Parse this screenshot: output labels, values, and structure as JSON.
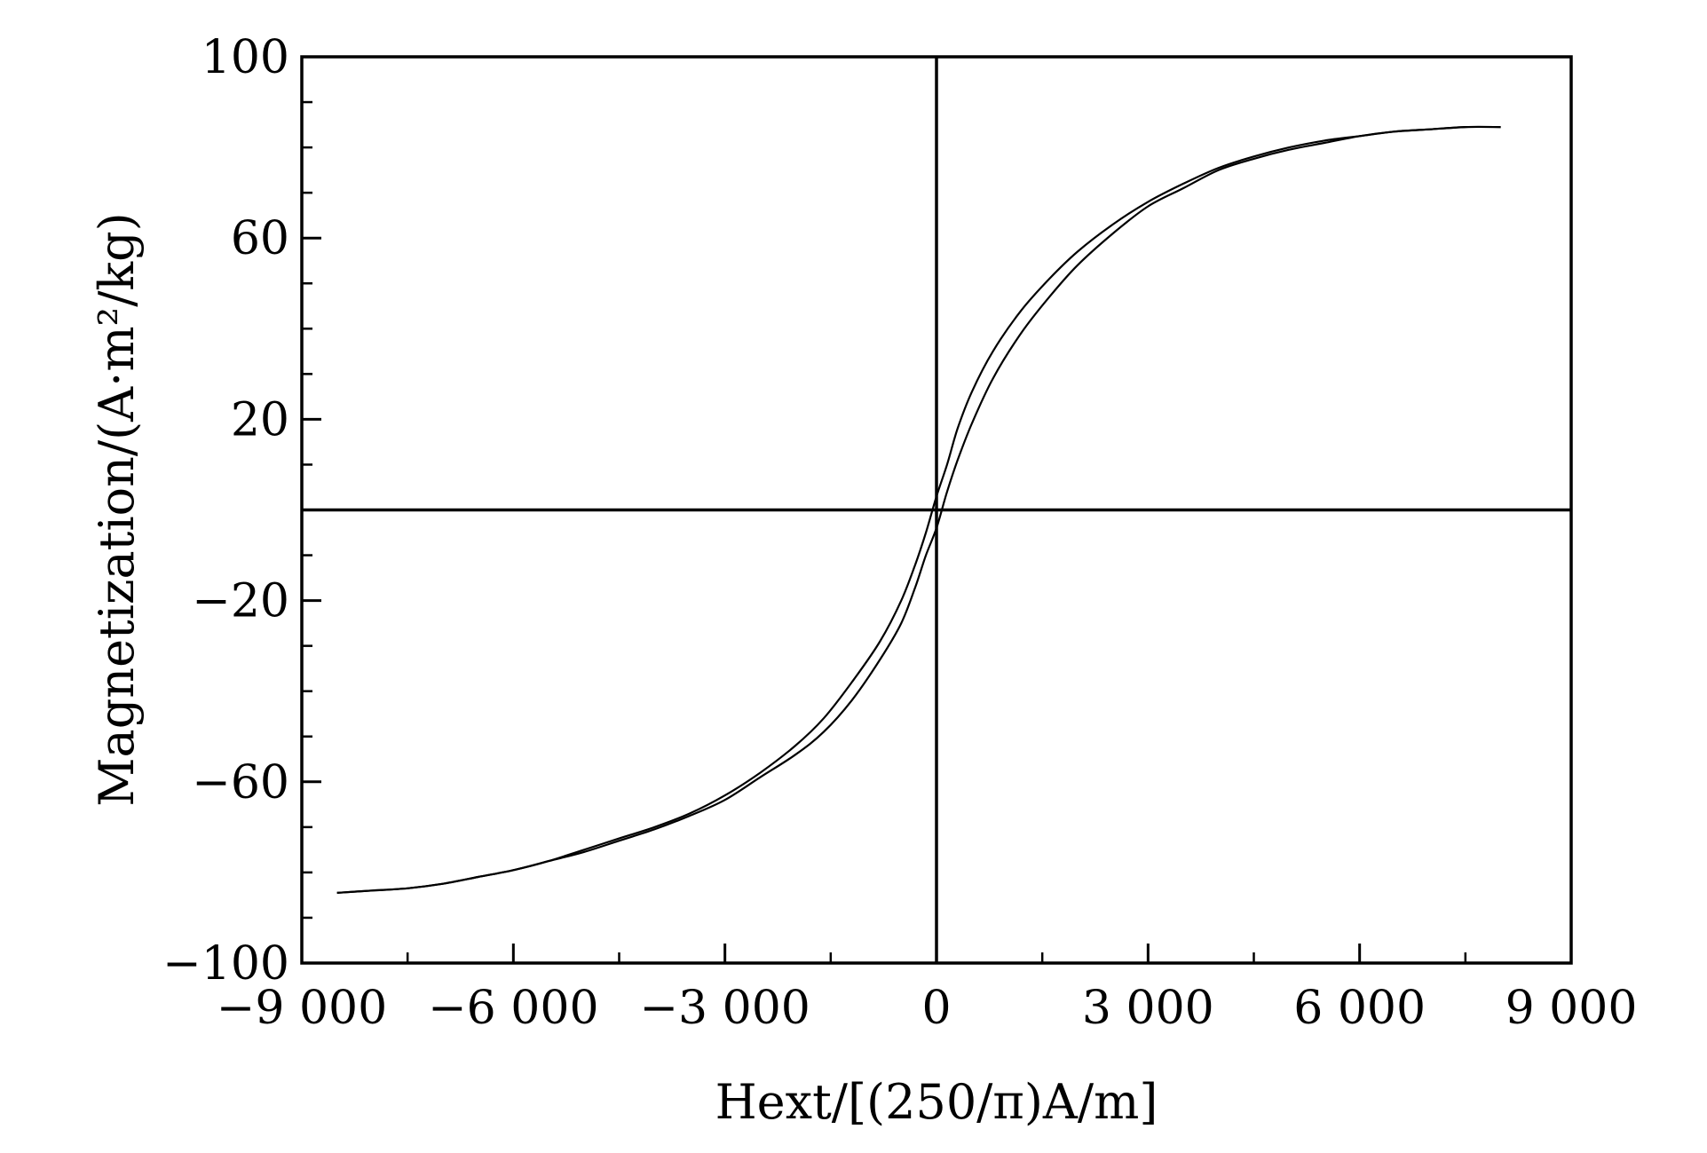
{
  "chart_data": {
    "type": "line",
    "title": "",
    "xlabel": "Hext/[(250/π)A/m]",
    "ylabel": "Magnetization/(A·m²/kg)",
    "xlim": [
      -9000,
      9000
    ],
    "ylim": [
      -100,
      100
    ],
    "x_ticks": [
      {
        "value": -9000,
        "label": "−9 000"
      },
      {
        "value": -6000,
        "label": "−6 000"
      },
      {
        "value": -3000,
        "label": "−3 000"
      },
      {
        "value": 0,
        "label": "0"
      },
      {
        "value": 3000,
        "label": "3 000"
      },
      {
        "value": 6000,
        "label": "6 000"
      },
      {
        "value": 9000,
        "label": "9 000"
      }
    ],
    "y_ticks": [
      {
        "value": 100,
        "label": "100"
      },
      {
        "value": 60,
        "label": "60"
      },
      {
        "value": 20,
        "label": "20"
      },
      {
        "value": -20,
        "label": "−20"
      },
      {
        "value": -60,
        "label": "−60"
      },
      {
        "value": -100,
        "label": "−100"
      }
    ],
    "x_minor_step": 1500,
    "y_minor_step": 10,
    "grid": false,
    "zero_lines": true,
    "line_color": "#000000",
    "series": [
      {
        "x": [
          -8500,
          -8000,
          -7500,
          -7000,
          -6500,
          -6000,
          -5500,
          -5000,
          -4500,
          -4000,
          -3500,
          -3000,
          -2500,
          -2000,
          -1600,
          -1200,
          -800,
          -500,
          -300,
          -150,
          0,
          150,
          300,
          500,
          800,
          1200,
          1600,
          2000,
          2500,
          3000,
          3500,
          4000,
          4500,
          5000,
          5500,
          6000,
          6500,
          7000,
          7500,
          8000
        ],
        "y": [
          -84.5,
          -84,
          -83.5,
          -82.5,
          -81,
          -79.5,
          -77.5,
          -75,
          -72.5,
          -70,
          -67,
          -63,
          -58,
          -52,
          -46,
          -38,
          -29,
          -20,
          -12,
          -5,
          3,
          10,
          18,
          26,
          35,
          44,
          51,
          57,
          63,
          68,
          72,
          75.5,
          78,
          80,
          81.5,
          82.5,
          83.5,
          84,
          84.5,
          84.5
        ]
      },
      {
        "x": [
          -8500,
          -8000,
          -7500,
          -7000,
          -6500,
          -6000,
          -5500,
          -5000,
          -4500,
          -4000,
          -3500,
          -3000,
          -2500,
          -2000,
          -1600,
          -1200,
          -800,
          -500,
          -300,
          -150,
          0,
          150,
          300,
          500,
          800,
          1200,
          1600,
          2000,
          2500,
          3000,
          3500,
          4000,
          4500,
          5000,
          5500,
          6000,
          6500,
          7000,
          7500,
          8000
        ],
        "y": [
          -84.5,
          -84,
          -83.5,
          -82.5,
          -81,
          -79.5,
          -77.5,
          -75.5,
          -73,
          -70.5,
          -67.5,
          -64,
          -59,
          -54,
          -49,
          -42,
          -33,
          -25,
          -17,
          -10,
          -4,
          4,
          11,
          19,
          29,
          39,
          47,
          54,
          61,
          67,
          71,
          75,
          77.5,
          79.5,
          81,
          82.5,
          83.5,
          84,
          84.5,
          84.5
        ]
      }
    ]
  }
}
